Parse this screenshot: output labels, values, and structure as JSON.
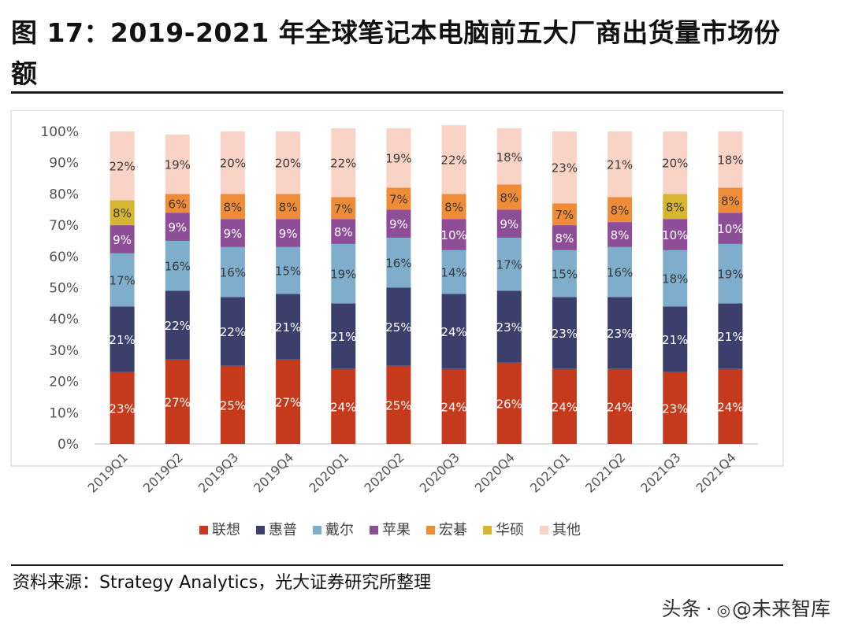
{
  "title": "图 17：2019-2021 年全球笔记本电脑前五大厂商出货量市场份额",
  "source": "资料来源：Strategy Analytics，光大证券研究所整理",
  "watermark": {
    "prefix": "头条",
    "handle": "@未来智库"
  },
  "chart_data": {
    "type": "bar",
    "stacked": true,
    "title": "",
    "xlabel": "",
    "ylabel": "",
    "ylim": [
      0,
      100
    ],
    "yticks": [
      "0%",
      "10%",
      "20%",
      "30%",
      "40%",
      "50%",
      "60%",
      "70%",
      "80%",
      "90%",
      "100%"
    ],
    "legend_position": "bottom",
    "categories": [
      "2019Q1",
      "2019Q2",
      "2019Q3",
      "2019Q4",
      "2020Q1",
      "2020Q2",
      "2020Q3",
      "2020Q4",
      "2021Q1",
      "2021Q2",
      "2021Q3",
      "2021Q4"
    ],
    "series": [
      {
        "name": "联想",
        "color": "#c5391c",
        "values": [
          23,
          27,
          25,
          27,
          24,
          25,
          24,
          26,
          24,
          24,
          23,
          24
        ],
        "labels": [
          "23%",
          "27%",
          "25%",
          "27%",
          "24%",
          "25%",
          "24%",
          "26%",
          "24%",
          "24%",
          "23%",
          "24%"
        ]
      },
      {
        "name": "惠普",
        "color": "#3c3f6b",
        "values": [
          21,
          22,
          22,
          21,
          21,
          25,
          24,
          23,
          23,
          23,
          21,
          21
        ],
        "labels": [
          "21%",
          "22%",
          "22%",
          "21%",
          "21%",
          "25%",
          "24%",
          "23%",
          "23%",
          "23%",
          "21%",
          "21%"
        ]
      },
      {
        "name": "戴尔",
        "color": "#7faecd",
        "values": [
          17,
          16,
          16,
          15,
          19,
          16,
          14,
          17,
          15,
          16,
          18,
          19
        ],
        "labels": [
          "17%",
          "16%",
          "16%",
          "15%",
          "19%",
          "16%",
          "14%",
          "17%",
          "15%",
          "16%",
          "18%",
          "19%"
        ]
      },
      {
        "name": "苹果",
        "color": "#8e4e97",
        "values": [
          9,
          9,
          9,
          9,
          8,
          9,
          10,
          9,
          8,
          8,
          10,
          10
        ],
        "labels": [
          "9%",
          "9%",
          "9%",
          "9%",
          "8%",
          "9%",
          "10%",
          "9%",
          "8%",
          "8%",
          "10%",
          "10%"
        ]
      },
      {
        "name": "宏碁",
        "color": "#ef8c38",
        "values": [
          0,
          6,
          8,
          8,
          7,
          7,
          8,
          8,
          7,
          8,
          0,
          8
        ],
        "labels": [
          "",
          "6%",
          "8%",
          "8%",
          "7%",
          "7%",
          "8%",
          "8%",
          "7%",
          "8%",
          "",
          "8%"
        ]
      },
      {
        "name": "华硕",
        "color": "#d6b630",
        "values": [
          8,
          0,
          0,
          0,
          0,
          0,
          0,
          0,
          0,
          0,
          8,
          0
        ],
        "labels": [
          "8%",
          "",
          "",
          "",
          "",
          "",
          "",
          "",
          "",
          "",
          "8%",
          ""
        ]
      },
      {
        "name": "其他",
        "color": "#f9d4c6",
        "values": [
          22,
          19,
          20,
          20,
          22,
          19,
          22,
          18,
          23,
          21,
          20,
          18
        ],
        "labels": [
          "22%",
          "19%",
          "20%",
          "20%",
          "22%",
          "19%",
          "22%",
          "18%",
          "23%",
          "21%",
          "20%",
          "18%"
        ]
      }
    ]
  }
}
